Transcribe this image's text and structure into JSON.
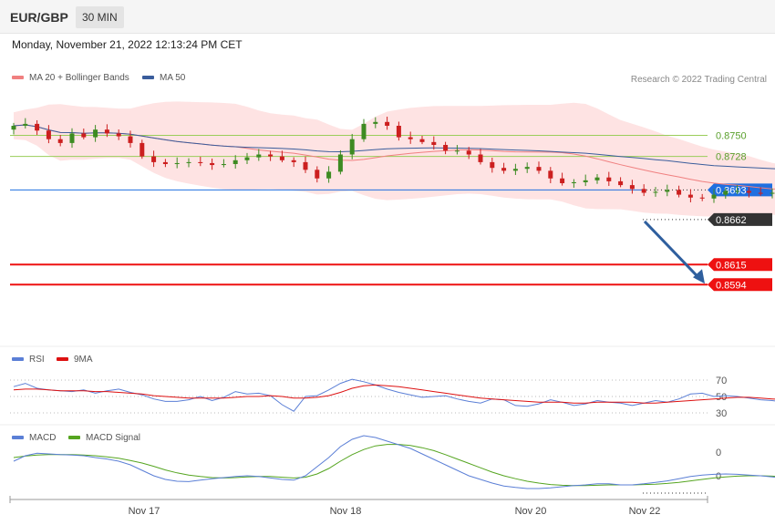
{
  "header": {
    "symbol": "EUR/GBP",
    "timeframe": "30 MIN",
    "datetime": "Monday, November 21, 2022 12:13:24 PM CET"
  },
  "colors": {
    "up": "#3d8b22",
    "down": "#cc1f1f",
    "ma20": "#f08080",
    "bands_fill": "#fdd9d9",
    "ma50": "#3a5d9c",
    "support": "#ee1111",
    "resistance_green": "#9acd5a",
    "pivot_blue": "#1f6fe0",
    "arrow": "#2f5f9e",
    "rsi": "#5b7fd6",
    "rsi_ma": "#dd1111",
    "macd": "#5b7fd6",
    "macd_signal": "#55a520"
  },
  "chart_data": [
    {
      "type": "candlestick",
      "title": "EUR/GBP",
      "legend": [
        {
          "label": "MA 20 + Bollinger Bands",
          "color": "#f08080"
        },
        {
          "label": "MA 50",
          "color": "#3a5d9c"
        }
      ],
      "legend_position": "top-left",
      "credit": "Research © 2022 Trading Central",
      "x_ticks": [
        "Nov 17",
        "Nov 18",
        "Nov 20",
        "Nov 22"
      ],
      "ylim": [
        0.858,
        0.879
      ],
      "grid": false,
      "price_levels": [
        {
          "label": "0.8750",
          "value": 0.875,
          "kind": "resistance"
        },
        {
          "label": "0.8728",
          "value": 0.8728,
          "kind": "resistance"
        },
        {
          "label": "0.8693",
          "value": 0.8693,
          "kind": "pivot"
        },
        {
          "label": "0.8662",
          "value": 0.8662,
          "kind": "last"
        },
        {
          "label": "0.8615",
          "value": 0.8615,
          "kind": "support"
        },
        {
          "label": "0.8594",
          "value": 0.8594,
          "kind": "support"
        }
      ],
      "close_path": [
        0.876,
        0.8762,
        0.8755,
        0.8746,
        0.8742,
        0.8752,
        0.8748,
        0.8756,
        0.8752,
        0.8749,
        0.8742,
        0.8728,
        0.8722,
        0.872,
        0.8721,
        0.8722,
        0.8721,
        0.8719,
        0.872,
        0.8724,
        0.8727,
        0.873,
        0.8728,
        0.8724,
        0.8722,
        0.8714,
        0.8705,
        0.8712,
        0.873,
        0.8746,
        0.8762,
        0.8764,
        0.876,
        0.8748,
        0.8746,
        0.8743,
        0.874,
        0.8734,
        0.8734,
        0.873,
        0.8722,
        0.8716,
        0.8713,
        0.8715,
        0.8717,
        0.8713,
        0.8705,
        0.87,
        0.8701,
        0.8703,
        0.8706,
        0.8702,
        0.8698,
        0.8694,
        0.869,
        0.8691,
        0.8693,
        0.8688,
        0.8685,
        0.8684,
        0.8688,
        0.8692,
        0.8692,
        0.869,
        0.8689,
        0.869,
        0.8688,
        0.8683,
        0.868,
        0.8663
      ],
      "projection": {
        "from": 0.8662,
        "to": 0.8594
      }
    },
    {
      "type": "line",
      "legend": [
        {
          "label": "RSI",
          "color": "#5b7fd6"
        },
        {
          "label": "9MA",
          "color": "#dd1111"
        }
      ],
      "levels": [
        {
          "label": "70",
          "value": 70
        },
        {
          "label": "50",
          "value": 50
        },
        {
          "label": "30",
          "value": 30
        }
      ],
      "ylim": [
        20,
        80
      ],
      "series": [
        {
          "name": "RSI",
          "values": [
            62,
            66,
            60,
            58,
            57,
            56,
            58,
            54,
            57,
            59,
            55,
            52,
            47,
            44,
            44,
            46,
            50,
            45,
            49,
            56,
            53,
            54,
            51,
            40,
            32,
            50,
            51,
            58,
            66,
            71,
            68,
            64,
            59,
            55,
            52,
            49,
            50,
            51,
            47,
            44,
            42,
            47,
            46,
            39,
            38,
            41,
            46,
            43,
            39,
            41,
            45,
            43,
            42,
            39,
            42,
            45,
            43,
            47,
            53,
            54,
            50,
            51,
            50,
            48,
            46,
            45,
            43,
            41,
            36,
            34
          ]
        },
        {
          "name": "9MA",
          "values": [
            58,
            59,
            59,
            58,
            57,
            57,
            57,
            56,
            56,
            55,
            54,
            53,
            51,
            50,
            49,
            48,
            48,
            48,
            48,
            49,
            50,
            50,
            51,
            50,
            48,
            48,
            49,
            51,
            55,
            60,
            63,
            64,
            63,
            62,
            60,
            58,
            56,
            54,
            52,
            50,
            48,
            47,
            46,
            45,
            44,
            43,
            43,
            43,
            42,
            42,
            43,
            43,
            43,
            43,
            42,
            42,
            43,
            44,
            45,
            46,
            47,
            48,
            49,
            49,
            48,
            47,
            46,
            44,
            42,
            40
          ]
        }
      ]
    },
    {
      "type": "line",
      "legend": [
        {
          "label": "MACD",
          "color": "#5b7fd6"
        },
        {
          "label": "MACD Signal",
          "color": "#55a520"
        }
      ],
      "levels": [
        {
          "label": "0",
          "value": 0.0
        },
        {
          "label": "0",
          "value": 0.0
        }
      ],
      "series": [
        {
          "name": "MACD",
          "values": [
            0.0004,
            0.00055,
            0.00062,
            0.0006,
            0.00058,
            0.00057,
            0.00055,
            0.0005,
            0.00046,
            0.0004,
            0.0003,
            0.00015,
            0.0,
            -0.0001,
            -0.00015,
            -0.00016,
            -0.00012,
            -8e-05,
            -5e-05,
            -2e-05,
            0.0,
            -2e-05,
            -6e-05,
            -0.0001,
            -0.00012,
            0.0,
            0.00025,
            0.0005,
            0.0008,
            0.001,
            0.0011,
            0.00105,
            0.00095,
            0.00085,
            0.00075,
            0.0006,
            0.00045,
            0.0003,
            0.00015,
            0.0,
            -0.0001,
            -0.0002,
            -0.00028,
            -0.00032,
            -0.00035,
            -0.00035,
            -0.00033,
            -0.0003,
            -0.00027,
            -0.00025,
            -0.00022,
            -0.00022,
            -0.00025,
            -0.00025,
            -0.00022,
            -0.00018,
            -0.00014,
            -8e-05,
            -2e-05,
            2e-05,
            4e-05,
            5e-05,
            4e-05,
            2e-05,
            0.0,
            -3e-05,
            -8e-05,
            -0.00015,
            -0.00022,
            -0.0003
          ]
        },
        {
          "name": "MACD Signal",
          "values": [
            0.0005,
            0.00054,
            0.00057,
            0.00058,
            0.00058,
            0.00058,
            0.00057,
            0.00055,
            0.00052,
            0.00048,
            0.00042,
            0.00035,
            0.00026,
            0.00016,
            8e-05,
            2e-05,
            -2e-05,
            -5e-05,
            -6e-05,
            -5e-05,
            -3e-05,
            -2e-05,
            -2e-05,
            -4e-05,
            -6e-05,
            -4e-05,
            5e-05,
            0.0002,
            0.0004,
            0.00058,
            0.00072,
            0.00082,
            0.00086,
            0.00086,
            0.00083,
            0.00077,
            0.00069,
            0.00058,
            0.00046,
            0.00034,
            0.00022,
            0.0001,
            0.0,
            -8e-05,
            -0.00015,
            -0.0002,
            -0.00024,
            -0.00026,
            -0.00027,
            -0.00027,
            -0.00026,
            -0.00025,
            -0.00025,
            -0.00025,
            -0.00024,
            -0.00023,
            -0.00021,
            -0.00018,
            -0.00014,
            -0.0001,
            -6e-05,
            -3e-05,
            -1e-05,
            0.0,
            0.0,
            -1e-05,
            -3e-05,
            -6e-05,
            -0.0001,
            -0.00014
          ]
        }
      ]
    }
  ]
}
